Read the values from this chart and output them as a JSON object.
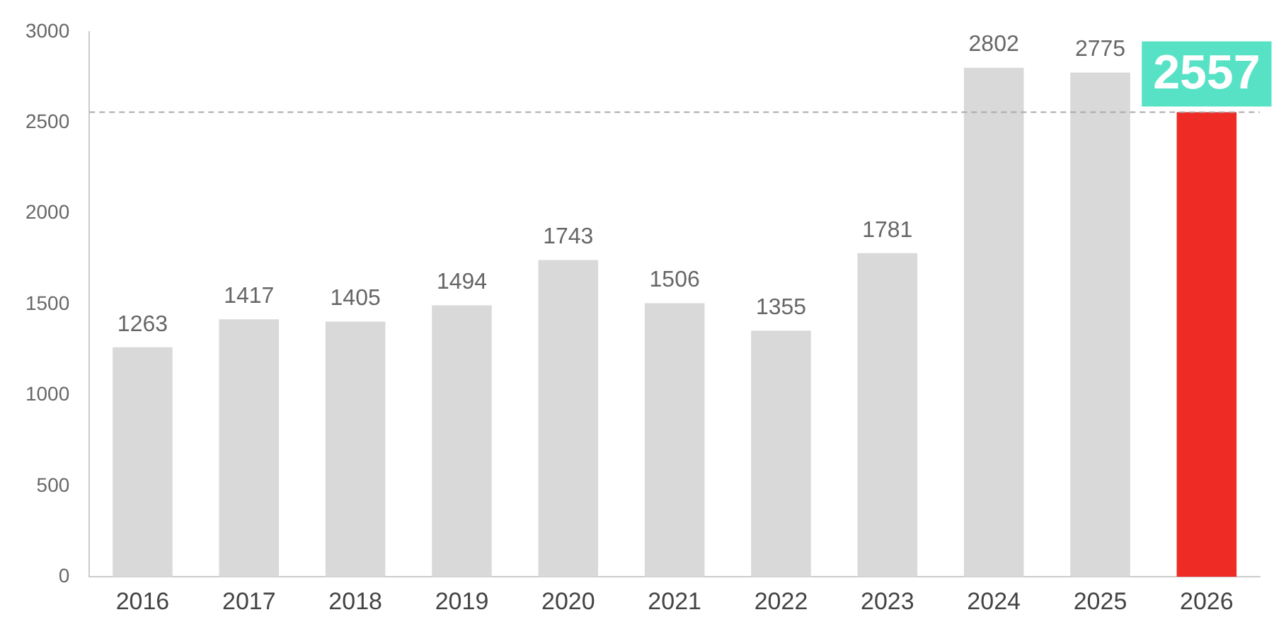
{
  "chart_data": {
    "type": "bar",
    "categories": [
      "2016",
      "2017",
      "2018",
      "2019",
      "2020",
      "2021",
      "2022",
      "2023",
      "2024",
      "2025",
      "2026"
    ],
    "values": [
      1263,
      1417,
      1405,
      1494,
      1743,
      1506,
      1355,
      1781,
      2802,
      2775,
      2557
    ],
    "colors": [
      "#d9d9d9",
      "#d9d9d9",
      "#d9d9d9",
      "#d9d9d9",
      "#d9d9d9",
      "#d9d9d9",
      "#d9d9d9",
      "#d9d9d9",
      "#d9d9d9",
      "#d9d9d9",
      "#ee2b24"
    ],
    "ylim": [
      0,
      3000
    ],
    "yticks": [
      0,
      500,
      1000,
      1500,
      2000,
      2500,
      3000
    ],
    "grid": false,
    "legend": false,
    "data_labels": true,
    "ref_lines": [
      {
        "axis": "y",
        "value": 2557,
        "color": "#aaaaaa",
        "line_style": "dashed"
      }
    ]
  }
}
